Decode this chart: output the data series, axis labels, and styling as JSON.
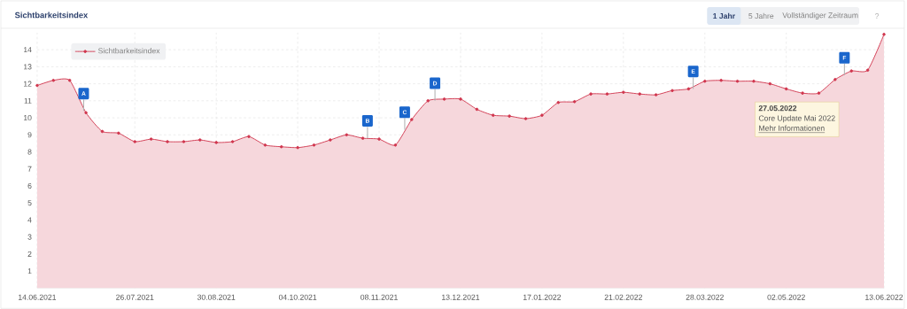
{
  "chart_data": {
    "type": "area",
    "title": "Sichtbarkeitsindex",
    "x": [
      "2021-06-14",
      "2021-06-21",
      "2021-06-28",
      "2021-07-05",
      "2021-07-12",
      "2021-07-19",
      "2021-07-26",
      "2021-08-02",
      "2021-08-09",
      "2021-08-16",
      "2021-08-23",
      "2021-08-30",
      "2021-09-06",
      "2021-09-13",
      "2021-09-20",
      "2021-09-27",
      "2021-10-04",
      "2021-10-11",
      "2021-10-18",
      "2021-10-25",
      "2021-11-01",
      "2021-11-08",
      "2021-11-15",
      "2021-11-22",
      "2021-11-29",
      "2021-12-06",
      "2021-12-13",
      "2021-12-20",
      "2021-12-27",
      "2022-01-03",
      "2022-01-10",
      "2022-01-17",
      "2022-01-24",
      "2022-01-31",
      "2022-02-07",
      "2022-02-14",
      "2022-02-21",
      "2022-02-28",
      "2022-03-07",
      "2022-03-14",
      "2022-03-21",
      "2022-03-28",
      "2022-04-04",
      "2022-04-11",
      "2022-04-18",
      "2022-04-25",
      "2022-05-02",
      "2022-05-09",
      "2022-05-16",
      "2022-05-23",
      "2022-05-30",
      "2022-06-06",
      "2022-06-13"
    ],
    "series": [
      {
        "name": "Sichtbarkeitsindex",
        "color": "#d0374f",
        "values": [
          11.9,
          12.2,
          12.2,
          10.3,
          9.2,
          9.1,
          8.6,
          8.75,
          8.6,
          8.6,
          8.7,
          8.55,
          8.6,
          8.9,
          8.4,
          8.3,
          8.25,
          8.4,
          8.7,
          9.0,
          8.8,
          8.75,
          8.4,
          9.9,
          11.0,
          11.1,
          11.1,
          10.5,
          10.15,
          10.1,
          9.95,
          10.15,
          10.9,
          10.95,
          11.4,
          11.4,
          11.5,
          11.4,
          11.35,
          11.6,
          11.7,
          12.15,
          12.2,
          12.15,
          12.15,
          12.0,
          11.7,
          11.45,
          11.45,
          12.25,
          12.75,
          12.8,
          14.9
        ]
      }
    ],
    "xlim": [
      "2021-06-14",
      "2022-06-13"
    ],
    "xticks": [
      {
        "value": "2021-06-14",
        "label": "14.06.2021"
      },
      {
        "value": "2021-07-26",
        "label": "26.07.2021"
      },
      {
        "value": "2021-08-30",
        "label": "30.08.2021"
      },
      {
        "value": "2021-10-04",
        "label": "04.10.2021"
      },
      {
        "value": "2021-11-08",
        "label": "08.11.2021"
      },
      {
        "value": "2021-12-13",
        "label": "13.12.2021"
      },
      {
        "value": "2022-01-17",
        "label": "17.01.2022"
      },
      {
        "value": "2022-02-21",
        "label": "21.02.2022"
      },
      {
        "value": "2022-03-28",
        "label": "28.03.2022"
      },
      {
        "value": "2022-05-02",
        "label": "02.05.2022"
      },
      {
        "value": "2022-06-13",
        "label": "13.06.2022"
      }
    ],
    "ylim": [
      0,
      15
    ],
    "yticks": [
      1,
      2,
      3,
      4,
      5,
      6,
      7,
      8,
      9,
      10,
      11,
      12,
      13,
      14
    ],
    "grid": true,
    "legend": "top left",
    "marker": "circle",
    "line_style": "solid",
    "annotations": [
      {
        "text": "A",
        "x": "2021-07-04",
        "y": 10.4
      },
      {
        "text": "B",
        "x": "2021-11-03",
        "y": 8.8
      },
      {
        "text": "C",
        "x": "2021-11-19",
        "y": 9.3
      },
      {
        "text": "D",
        "x": "2021-12-02",
        "y": 11.0
      },
      {
        "text": "E",
        "x": "2022-03-23",
        "y": 11.7
      },
      {
        "text": "F",
        "x": "2022-05-27",
        "y": 12.5
      },
      "1 Jahr",
      "5 Jahre",
      "Vollständiger Zeitraum",
      "?",
      "27.05.2022",
      "Core Update Mai 2022",
      "Mehr Informationen"
    ]
  }
}
